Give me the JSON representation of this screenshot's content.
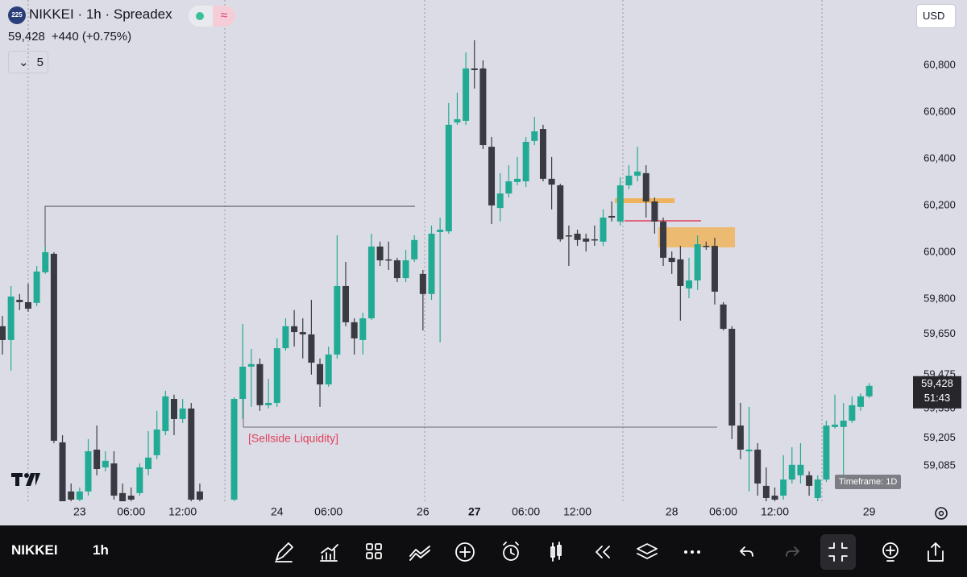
{
  "header": {
    "badge": "225",
    "title": "NIKKEI · 1h · Spreadex",
    "price": "59,428",
    "change": "+440 (+0.75%)",
    "indicator_count": "5",
    "currency": "USD"
  },
  "chart_data": {
    "type": "candlestick",
    "up_color": "#22ab94",
    "down_color": "#3a3a42",
    "categories": [
      null,
      null,
      null,
      null,
      null,
      null,
      null,
      null,
      null,
      "23",
      null,
      null,
      null,
      null,
      null,
      "06:00",
      null,
      null,
      null,
      null,
      null,
      "12:00",
      null,
      null,
      null,
      null,
      null,
      null,
      null,
      null,
      null,
      null,
      "24",
      null,
      null,
      null,
      null,
      null,
      "06:00",
      null,
      null,
      null,
      null,
      null,
      null,
      null,
      null,
      null,
      null,
      "26",
      null,
      null,
      null,
      null,
      null,
      "27",
      null,
      null,
      null,
      null,
      null,
      "06:00",
      null,
      null,
      null,
      null,
      null,
      "12:00",
      null,
      null,
      null,
      null,
      null,
      null,
      null,
      null,
      null,
      null,
      "28",
      null,
      null,
      null,
      null,
      null,
      "06:00",
      null,
      null,
      null,
      null,
      null,
      "12:00",
      null,
      null,
      null,
      null,
      null,
      null,
      null,
      null,
      null,
      null,
      "29"
    ],
    "open": [
      59683,
      59624,
      59796,
      59786,
      59783,
      59914,
      59993,
      59186,
      58976,
      58941,
      58976,
      59155,
      59079,
      59096,
      58969,
      58958,
      58969,
      59072,
      59131,
      59234,
      59372,
      59286,
      59331,
      58976,
      null,
      null,
      null,
      58941,
      59372,
      59510,
      59521,
      59345,
      59355,
      59589,
      59683,
      59658,
      59648,
      59521,
      59434,
      59562,
      59855,
      59700,
      59624,
      59717,
      60024,
      59969,
      59965,
      59889,
      59969,
      59907,
      59821,
      60086,
      60089,
      60555,
      60562,
      60786,
      60786,
      60451,
      60189,
      60251,
      60300,
      60303,
      60476,
      60527,
      60314,
      60286,
      60072,
      60079,
      60058,
      60055,
      60045,
      60155,
      60131,
      60286,
      60327,
      60338,
      60217,
      60131,
      59976,
      59969,
      59845,
      59879,
      60027,
      60027,
      59776,
      59672,
      59258,
      59148,
      59155,
      59000,
      58958,
      58958,
      59027,
      59045,
      59045,
      58948,
      59027,
      59252,
      59252,
      59279,
      59338,
      59383
    ],
    "high": [
      59727,
      59855,
      59821,
      59865,
      59941,
      60027,
      60000,
      59217,
      59010,
      58993,
      59200,
      59258,
      59148,
      59148,
      59010,
      58993,
      59096,
      59234,
      59321,
      59407,
      59390,
      59372,
      59355,
      59010,
      null,
      null,
      null,
      59379,
      59693,
      59586,
      59545,
      59458,
      59631,
      59717,
      59752,
      59717,
      59796,
      59545,
      59596,
      60072,
      59958,
      59717,
      59741,
      60079,
      60045,
      60045,
      59976,
      60010,
      60072,
      59924,
      60114,
      60148,
      60638,
      60683,
      60855,
      60907,
      60821,
      60493,
      60338,
      60372,
      60407,
      60493,
      60579,
      60545,
      60407,
      60293,
      60114,
      60096,
      60079,
      60114,
      60183,
      60217,
      60320,
      60372,
      60451,
      60372,
      60234,
      60148,
      60003,
      60027,
      59976,
      60072,
      60045,
      60062,
      59786,
      59683,
      59355,
      59338,
      59183,
      59079,
      58993,
      59131,
      59165,
      59183,
      59062,
      59045,
      59279,
      59390,
      59355,
      59383,
      59396,
      59440
    ],
    "low": [
      59562,
      59493,
      59752,
      59745,
      59769,
      59907,
      59183,
      58872,
      58907,
      58924,
      58958,
      59045,
      59062,
      58941,
      58872,
      58907,
      58958,
      59045,
      59114,
      59217,
      59217,
      59269,
      58907,
      58907,
      null,
      null,
      null,
      58907,
      59286,
      59338,
      59321,
      59331,
      59338,
      59579,
      59596,
      59545,
      59476,
      59338,
      59424,
      59545,
      59683,
      59562,
      59562,
      59710,
      59941,
      59924,
      59872,
      59872,
      59958,
      59665,
      59796,
      59614,
      60079,
      60545,
      60545,
      60700,
      60441,
      60120,
      60131,
      60234,
      60286,
      60279,
      60458,
      60303,
      60183,
      60045,
      59941,
      60027,
      60003,
      60027,
      60027,
      60131,
      60114,
      60269,
      60303,
      60148,
      60079,
      59941,
      59907,
      59707,
      59803,
      59838,
      60010,
      59776,
      59665,
      59200,
      59114,
      58976,
      58958,
      58924,
      58907,
      58941,
      59010,
      59010,
      58958,
      58924,
      59017,
      59245,
      59027,
      59269,
      59321,
      59376
    ],
    "close": [
      59624,
      59810,
      59786,
      59758,
      59917,
      60000,
      59193,
      58924,
      58941,
      58976,
      59148,
      59072,
      59107,
      58958,
      58924,
      58941,
      59079,
      59121,
      59241,
      59383,
      59286,
      59331,
      58941,
      58941,
      null,
      null,
      null,
      59372,
      59510,
      59521,
      59345,
      59355,
      59589,
      59683,
      59658,
      59648,
      59527,
      59434,
      59562,
      59855,
      59700,
      59631,
      59717,
      60024,
      59965,
      59965,
      59889,
      59965,
      60052,
      59821,
      60079,
      60096,
      60545,
      60569,
      60786,
      60779,
      60458,
      60200,
      60251,
      60303,
      60314,
      60472,
      60517,
      60314,
      60289,
      60055,
      60069,
      60052,
      60045,
      60052,
      60148,
      60148,
      60286,
      60327,
      60345,
      60217,
      60131,
      59976,
      59958,
      59855,
      59879,
      60034,
      60024,
      59831,
      59672,
      59258,
      59155,
      59155,
      59010,
      58948,
      58941,
      59027,
      59090,
      59090,
      59000,
      59027,
      59258,
      59262,
      59279,
      59345,
      59383,
      59428
    ],
    "ylim": [
      58941,
      61079
    ],
    "yticks": [
      {
        "value": 60800,
        "label": "60,800"
      },
      {
        "value": 60600,
        "label": "60,600"
      },
      {
        "value": 60400,
        "label": "60,400"
      },
      {
        "value": 60200,
        "label": "60,200"
      },
      {
        "value": 60000,
        "label": "60,000"
      },
      {
        "value": 59800,
        "label": "59,800"
      },
      {
        "value": 59650,
        "label": "59,650"
      },
      {
        "value": 59475,
        "label": "59,475"
      },
      {
        "value": 59330,
        "label": "59,330"
      },
      {
        "value": 59205,
        "label": "59,205"
      },
      {
        "value": 59085,
        "label": "59,085"
      }
    ],
    "annotation": "[Sellside Liquidity]",
    "price_tag": {
      "price": "59,428",
      "countdown": "51:43"
    },
    "timeframe_note": "Timeframe: 1D"
  },
  "toolbar": {
    "symbol": "NIKKEI",
    "interval": "1h"
  }
}
